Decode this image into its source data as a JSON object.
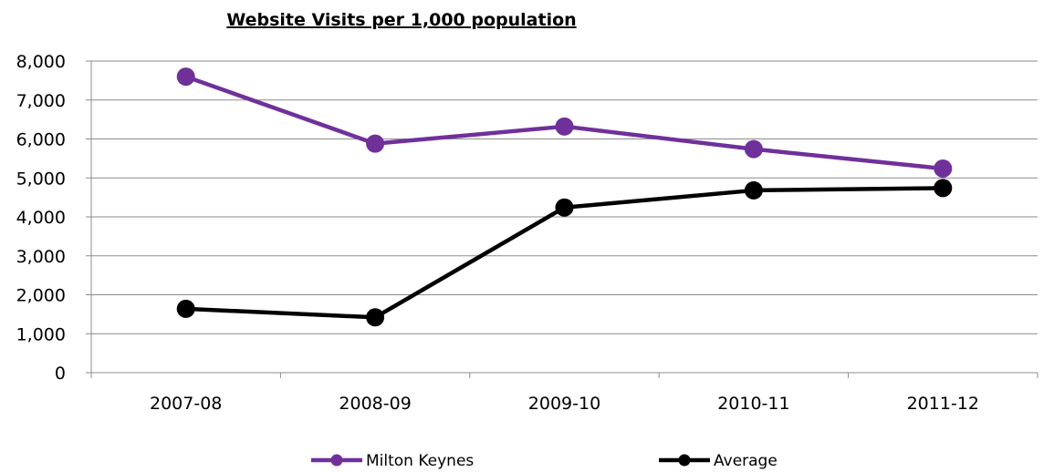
{
  "chart_data": {
    "type": "line",
    "title": "Website Visits per 1,000 population",
    "xlabel": "",
    "ylabel": "",
    "categories": [
      "2007-08",
      "2008-09",
      "2009-10",
      "2010-11",
      "2011-12"
    ],
    "y_ticks": [
      "0",
      "1,000",
      "2,000",
      "3,000",
      "4,000",
      "5,000",
      "6,000",
      "7,000",
      "8,000"
    ],
    "ylim": [
      0,
      8000
    ],
    "grid": true,
    "legend_position": "bottom",
    "series": [
      {
        "name": "Milton Keynes",
        "color": "#70309a",
        "values": [
          7600,
          5880,
          6320,
          5740,
          5240
        ]
      },
      {
        "name": "Average",
        "color": "#000000",
        "values": [
          1640,
          1420,
          4240,
          4680,
          4740
        ]
      }
    ]
  }
}
